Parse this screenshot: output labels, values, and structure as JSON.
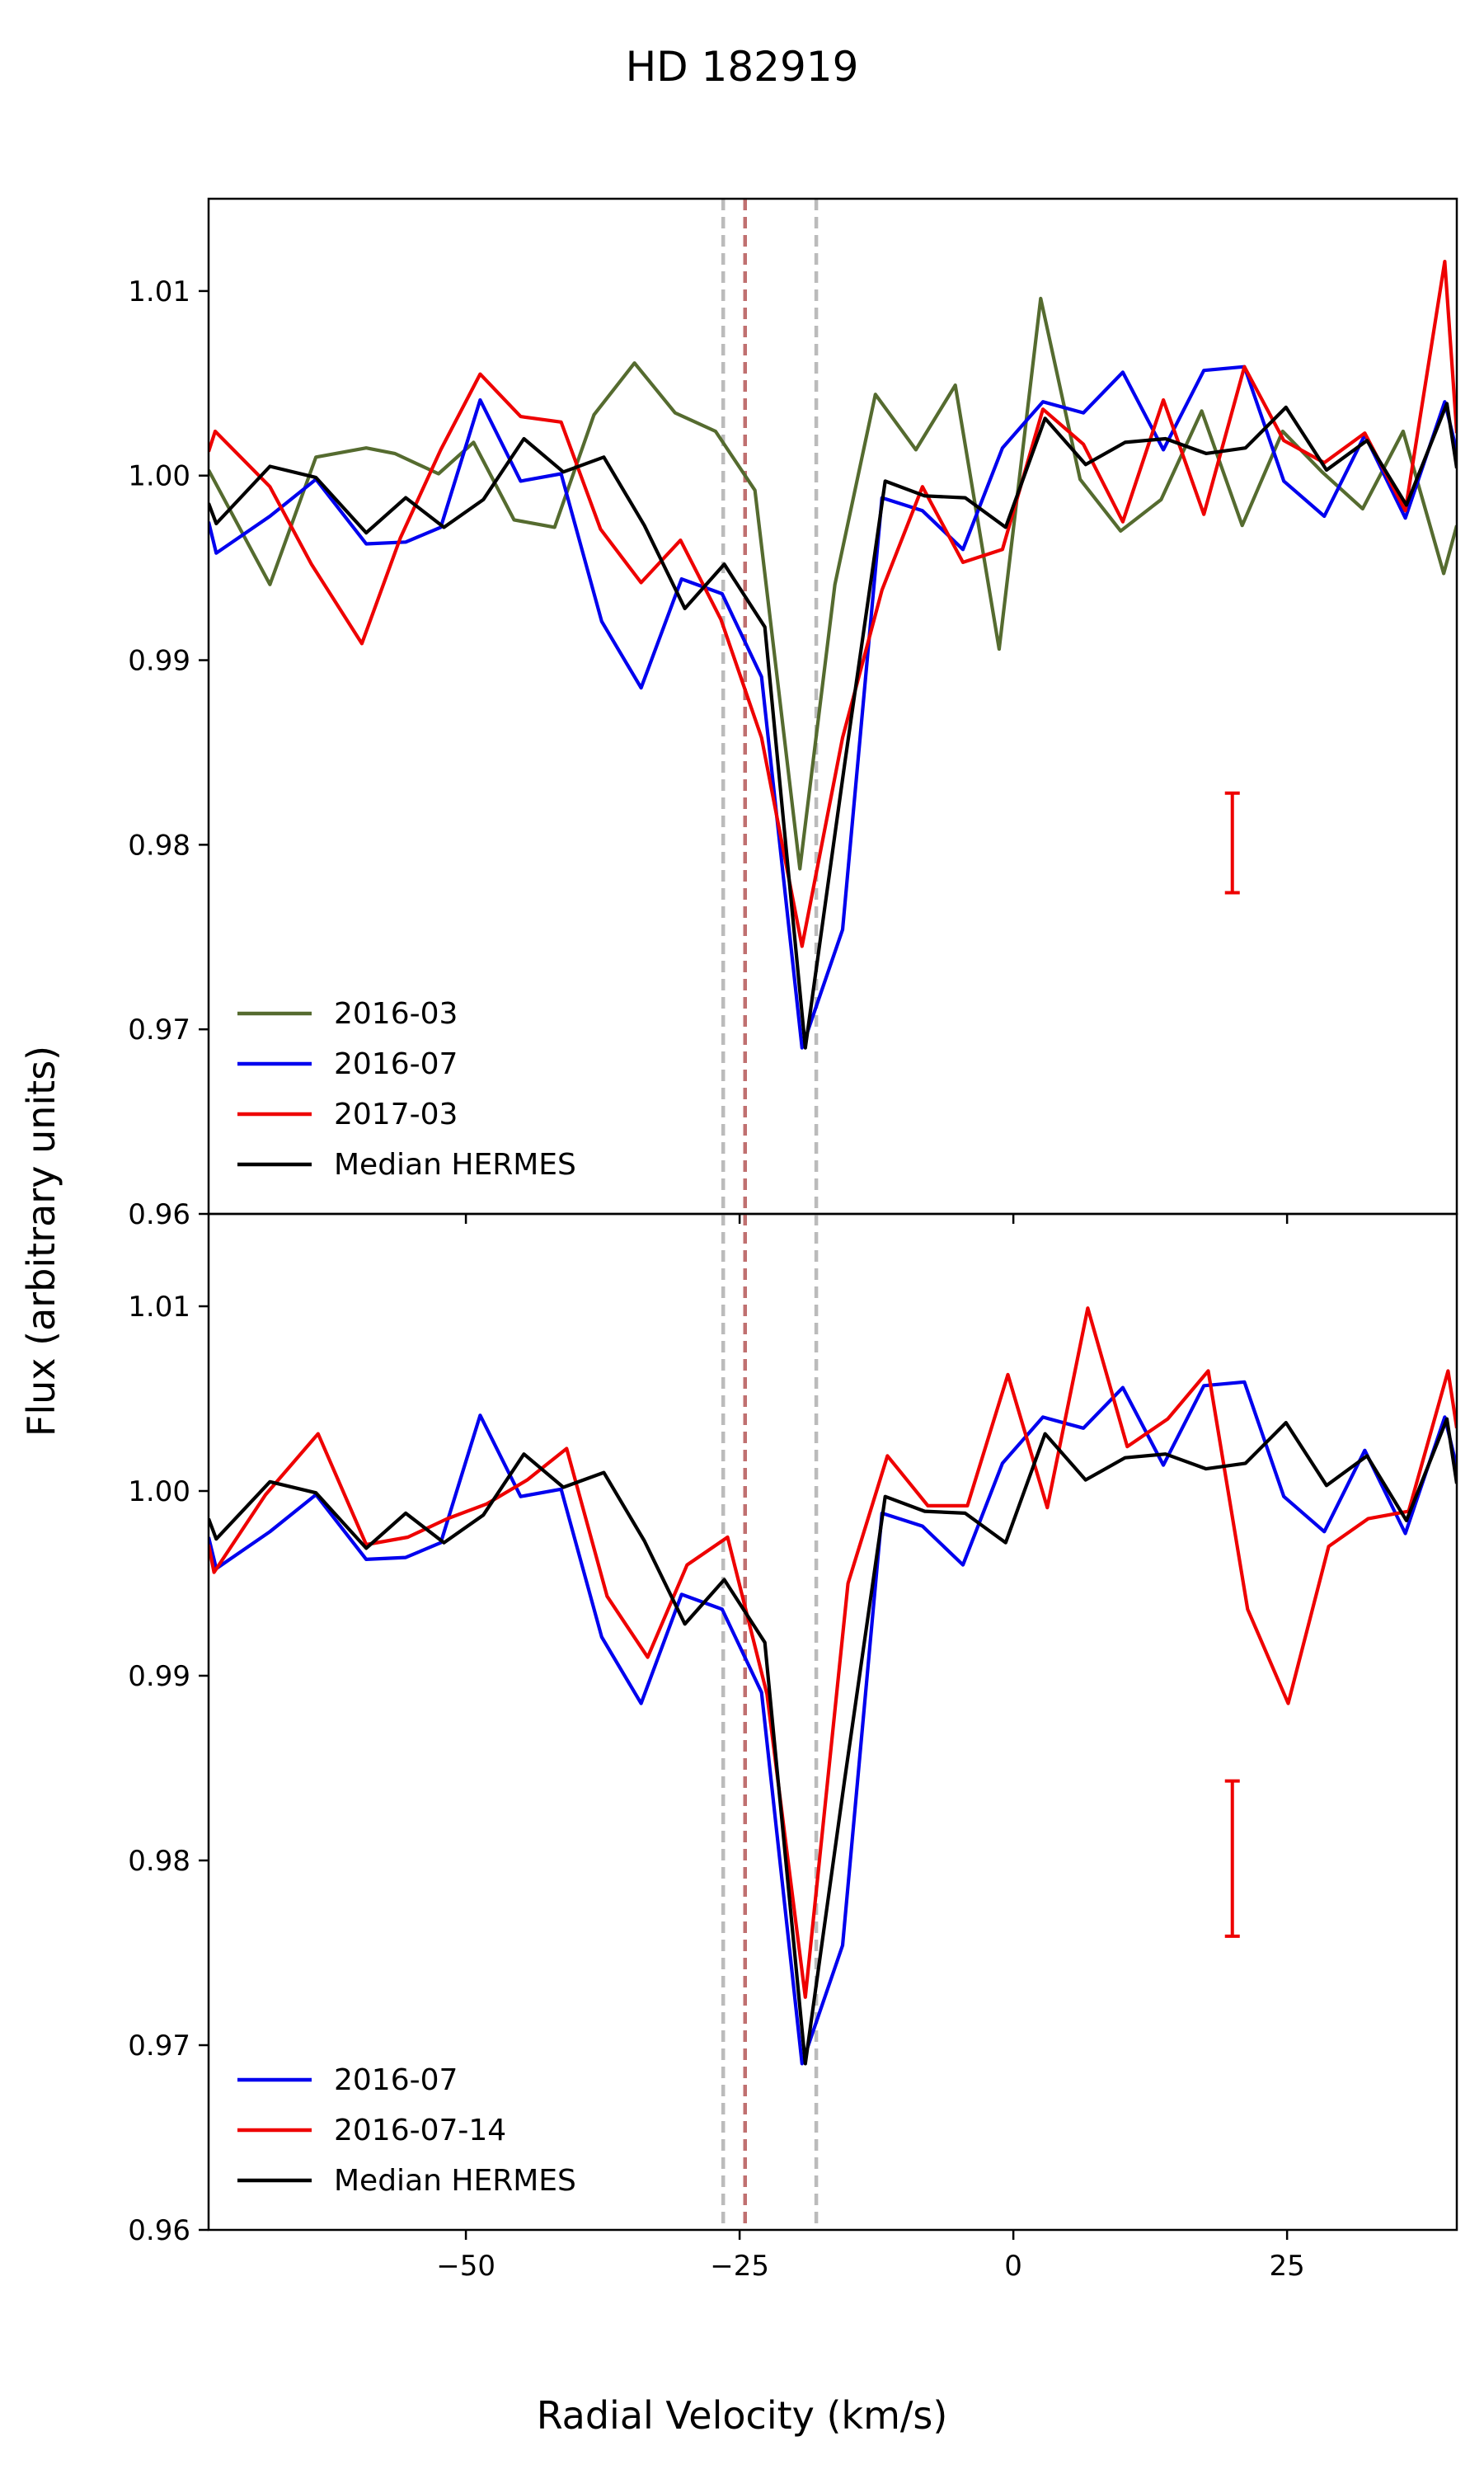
{
  "chart_data": {
    "title": "HD 182919",
    "xlabel": "Radial Velocity (km/s)",
    "ylabel": "Flux (arbitrary units)",
    "xlim": [
      -73.5,
      40.5
    ],
    "x_ticks": [
      -50,
      -25,
      0,
      25
    ],
    "x_tick_labels": [
      "−50",
      "−25",
      "0",
      "25"
    ],
    "vlines": [
      {
        "x": -26.5,
        "color": "#bbbbbb",
        "style": "dashed"
      },
      {
        "x": -24.5,
        "color": "#c07070",
        "style": "dashed"
      },
      {
        "x": -18.0,
        "color": "#bbbbbb",
        "style": "dashed"
      }
    ],
    "panels": [
      {
        "type": "line",
        "ylim": [
          0.96,
          1.015
        ],
        "y_ticks": [
          0.96,
          0.97,
          0.98,
          0.99,
          1.0,
          1.01
        ],
        "y_tick_labels": [
          "0.96",
          "0.97",
          "0.98",
          "0.99",
          "1.00",
          "1.01"
        ],
        "error_bar": {
          "x": 20.0,
          "y_low": 0.9774,
          "y_high": 0.9828,
          "color": "#ee0000"
        },
        "series": [
          {
            "name": "2016-03",
            "color": "#556b2f",
            "x": [
              -73.5,
              -67.9,
              -63.7,
              -59.1,
              -56.5,
              -52.5,
              -49.3,
              -45.6,
              -41.9,
              -38.3,
              -34.6,
              -30.9,
              -27.2,
              -23.6,
              -19.5,
              -16.3,
              -12.6,
              -8.9,
              -5.3,
              -1.3,
              2.5,
              6.1,
              9.8,
              13.5,
              17.2,
              20.9,
              24.6,
              28.2,
              31.9,
              35.6,
              39.3,
              40.5
            ],
            "y": [
              1.0003,
              0.9941,
              1.001,
              1.0015,
              1.0012,
              1.0001,
              1.0018,
              0.9976,
              0.9972,
              1.0033,
              1.0061,
              1.0034,
              1.0024,
              0.9992,
              0.9787,
              0.9941,
              1.0044,
              1.0014,
              1.0049,
              0.9906,
              1.0096,
              0.9998,
              0.997,
              0.9987,
              1.0035,
              0.9973,
              1.0024,
              1.0002,
              0.9982,
              1.0024,
              0.9947,
              0.9973
            ]
          },
          {
            "name": "2016-07",
            "color": "#0000ee",
            "x": [
              -73.5,
              -72.8,
              -67.9,
              -63.7,
              -59.1,
              -55.5,
              -52.3,
              -48.7,
              -45.0,
              -41.3,
              -37.6,
              -34.0,
              -30.3,
              -26.6,
              -23.0,
              -19.3,
              -15.6,
              -12.0,
              -8.3,
              -4.6,
              -1.0,
              2.7,
              6.4,
              10.0,
              13.7,
              17.4,
              21.1,
              24.7,
              28.4,
              32.1,
              35.8,
              39.4,
              40.5
            ],
            "y": [
              0.9975,
              0.9958,
              0.9978,
              0.9998,
              0.9963,
              0.9964,
              0.9972,
              1.0041,
              0.9997,
              1.0001,
              0.9921,
              0.9885,
              0.9944,
              0.9936,
              0.9891,
              0.969,
              0.9754,
              0.9988,
              0.9981,
              0.996,
              1.0015,
              1.004,
              1.0034,
              1.0056,
              1.0014,
              1.0057,
              1.0059,
              0.9997,
              0.9978,
              1.0022,
              0.9977,
              1.004,
              1.0013
            ]
          },
          {
            "name": "2017-03",
            "color": "#ee0000",
            "x": [
              -73.5,
              -72.9,
              -67.9,
              -64.1,
              -59.5,
              -56.0,
              -52.3,
              -48.7,
              -45.0,
              -41.3,
              -37.7,
              -34.0,
              -30.4,
              -26.7,
              -23.0,
              -19.3,
              -15.6,
              -12.0,
              -8.3,
              -4.6,
              -1.0,
              2.7,
              6.4,
              10.0,
              13.7,
              17.4,
              21.1,
              24.7,
              28.4,
              32.1,
              35.8,
              39.4,
              40.5
            ],
            "y": [
              1.0013,
              1.0024,
              0.9994,
              0.9952,
              0.9909,
              0.9966,
              1.0014,
              1.0055,
              1.0032,
              1.0029,
              0.9971,
              0.9942,
              0.9965,
              0.9922,
              0.9858,
              0.9745,
              0.9858,
              0.9938,
              0.9994,
              0.9953,
              0.996,
              1.0036,
              1.0017,
              0.9975,
              1.0041,
              0.9979,
              1.0059,
              1.0019,
              1.0007,
              1.0023,
              0.9981,
              1.0116,
              1.0023
            ]
          },
          {
            "name": "Median HERMES",
            "color": "#000000",
            "x": [
              -73.5,
              -72.8,
              -67.9,
              -63.7,
              -59.1,
              -55.5,
              -52.0,
              -48.4,
              -44.7,
              -41.1,
              -37.4,
              -33.7,
              -30.0,
              -26.4,
              -22.7,
              -19.0,
              -15.4,
              -11.7,
              -8.1,
              -4.4,
              -0.7,
              2.9,
              6.6,
              10.2,
              13.9,
              17.6,
              21.2,
              24.9,
              28.6,
              32.3,
              35.9,
              39.6,
              40.5
            ],
            "y": [
              0.9985,
              0.9974,
              1.0005,
              0.9999,
              0.9969,
              0.9988,
              0.9972,
              0.9987,
              1.002,
              1.0002,
              1.001,
              0.9973,
              0.9928,
              0.9952,
              0.9918,
              0.969,
              0.9844,
              0.9997,
              0.9989,
              0.9988,
              0.9972,
              1.0031,
              1.0006,
              1.0018,
              1.002,
              1.0012,
              1.0015,
              1.0037,
              1.0003,
              1.0019,
              0.9984,
              1.0039,
              1.0004
            ]
          }
        ],
        "legend": [
          "2016-03",
          "2016-07",
          "2017-03",
          "Median HERMES"
        ],
        "legend_position": "lower-left"
      },
      {
        "type": "line",
        "ylim": [
          0.96,
          1.015
        ],
        "y_ticks": [
          0.96,
          0.97,
          0.98,
          0.99,
          1.0,
          1.01
        ],
        "y_tick_labels": [
          "0.96",
          "0.97",
          "0.98",
          "0.99",
          "1.00",
          "1.01"
        ],
        "error_bar": {
          "x": 20.0,
          "y_low": 0.9759,
          "y_high": 0.9843,
          "color": "#ee0000"
        },
        "series": [
          {
            "name": "2016-07",
            "color": "#0000ee",
            "x": [
              -73.5,
              -72.8,
              -67.9,
              -63.7,
              -59.1,
              -55.5,
              -52.3,
              -48.7,
              -45.0,
              -41.3,
              -37.6,
              -34.0,
              -30.3,
              -26.6,
              -23.0,
              -19.3,
              -15.6,
              -12.0,
              -8.3,
              -4.6,
              -1.0,
              2.7,
              6.4,
              10.0,
              13.7,
              17.4,
              21.1,
              24.7,
              28.4,
              32.1,
              35.8,
              39.4,
              40.5
            ],
            "y": [
              0.9975,
              0.9958,
              0.9978,
              0.9998,
              0.9963,
              0.9964,
              0.9972,
              1.0041,
              0.9997,
              1.0001,
              0.9921,
              0.9885,
              0.9944,
              0.9936,
              0.9891,
              0.969,
              0.9754,
              0.9988,
              0.9981,
              0.996,
              1.0015,
              1.004,
              1.0034,
              1.0056,
              1.0014,
              1.0057,
              1.0059,
              0.9997,
              0.9978,
              1.0022,
              0.9977,
              1.004,
              1.0013
            ]
          },
          {
            "name": "2016-07-14",
            "color": "#ee0000",
            "x": [
              -73.5,
              -73.0,
              -68.3,
              -63.5,
              -59.1,
              -55.3,
              -51.7,
              -48.1,
              -44.4,
              -40.8,
              -37.1,
              -33.4,
              -29.8,
              -26.1,
              -22.5,
              -19.0,
              -15.1,
              -11.5,
              -7.8,
              -4.2,
              -0.5,
              3.1,
              6.8,
              10.4,
              14.1,
              17.8,
              21.4,
              25.1,
              28.8,
              32.4,
              36.1,
              39.7,
              40.5
            ],
            "y": [
              0.9971,
              0.9956,
              0.9998,
              1.0031,
              0.9971,
              0.9975,
              0.9985,
              0.9993,
              1.0006,
              1.0023,
              0.9943,
              0.991,
              0.996,
              0.9975,
              0.989,
              0.9726,
              0.995,
              1.0019,
              0.9992,
              0.9992,
              1.0063,
              0.9991,
              1.0099,
              1.0024,
              1.0039,
              1.0065,
              0.9936,
              0.9885,
              0.997,
              0.9985,
              0.9989,
              1.0065,
              1.0034
            ]
          },
          {
            "name": "Median HERMES",
            "color": "#000000",
            "x": [
              -73.5,
              -72.8,
              -67.9,
              -63.7,
              -59.1,
              -55.5,
              -52.0,
              -48.4,
              -44.7,
              -41.1,
              -37.4,
              -33.7,
              -30.0,
              -26.4,
              -22.7,
              -19.0,
              -15.4,
              -11.7,
              -8.1,
              -4.4,
              -0.7,
              2.9,
              6.6,
              10.2,
              13.9,
              17.6,
              21.2,
              24.9,
              28.6,
              32.3,
              35.9,
              39.6,
              40.5
            ],
            "y": [
              0.9985,
              0.9974,
              1.0005,
              0.9999,
              0.9969,
              0.9988,
              0.9972,
              0.9987,
              1.002,
              1.0002,
              1.001,
              0.9973,
              0.9928,
              0.9952,
              0.9918,
              0.969,
              0.9844,
              0.9997,
              0.9989,
              0.9988,
              0.9972,
              1.0031,
              1.0006,
              1.0018,
              1.002,
              1.0012,
              1.0015,
              1.0037,
              1.0003,
              1.0019,
              0.9984,
              1.0039,
              1.0004
            ]
          }
        ],
        "legend": [
          "2016-07",
          "2016-07-14",
          "Median HERMES"
        ],
        "legend_position": "lower-left"
      }
    ]
  }
}
